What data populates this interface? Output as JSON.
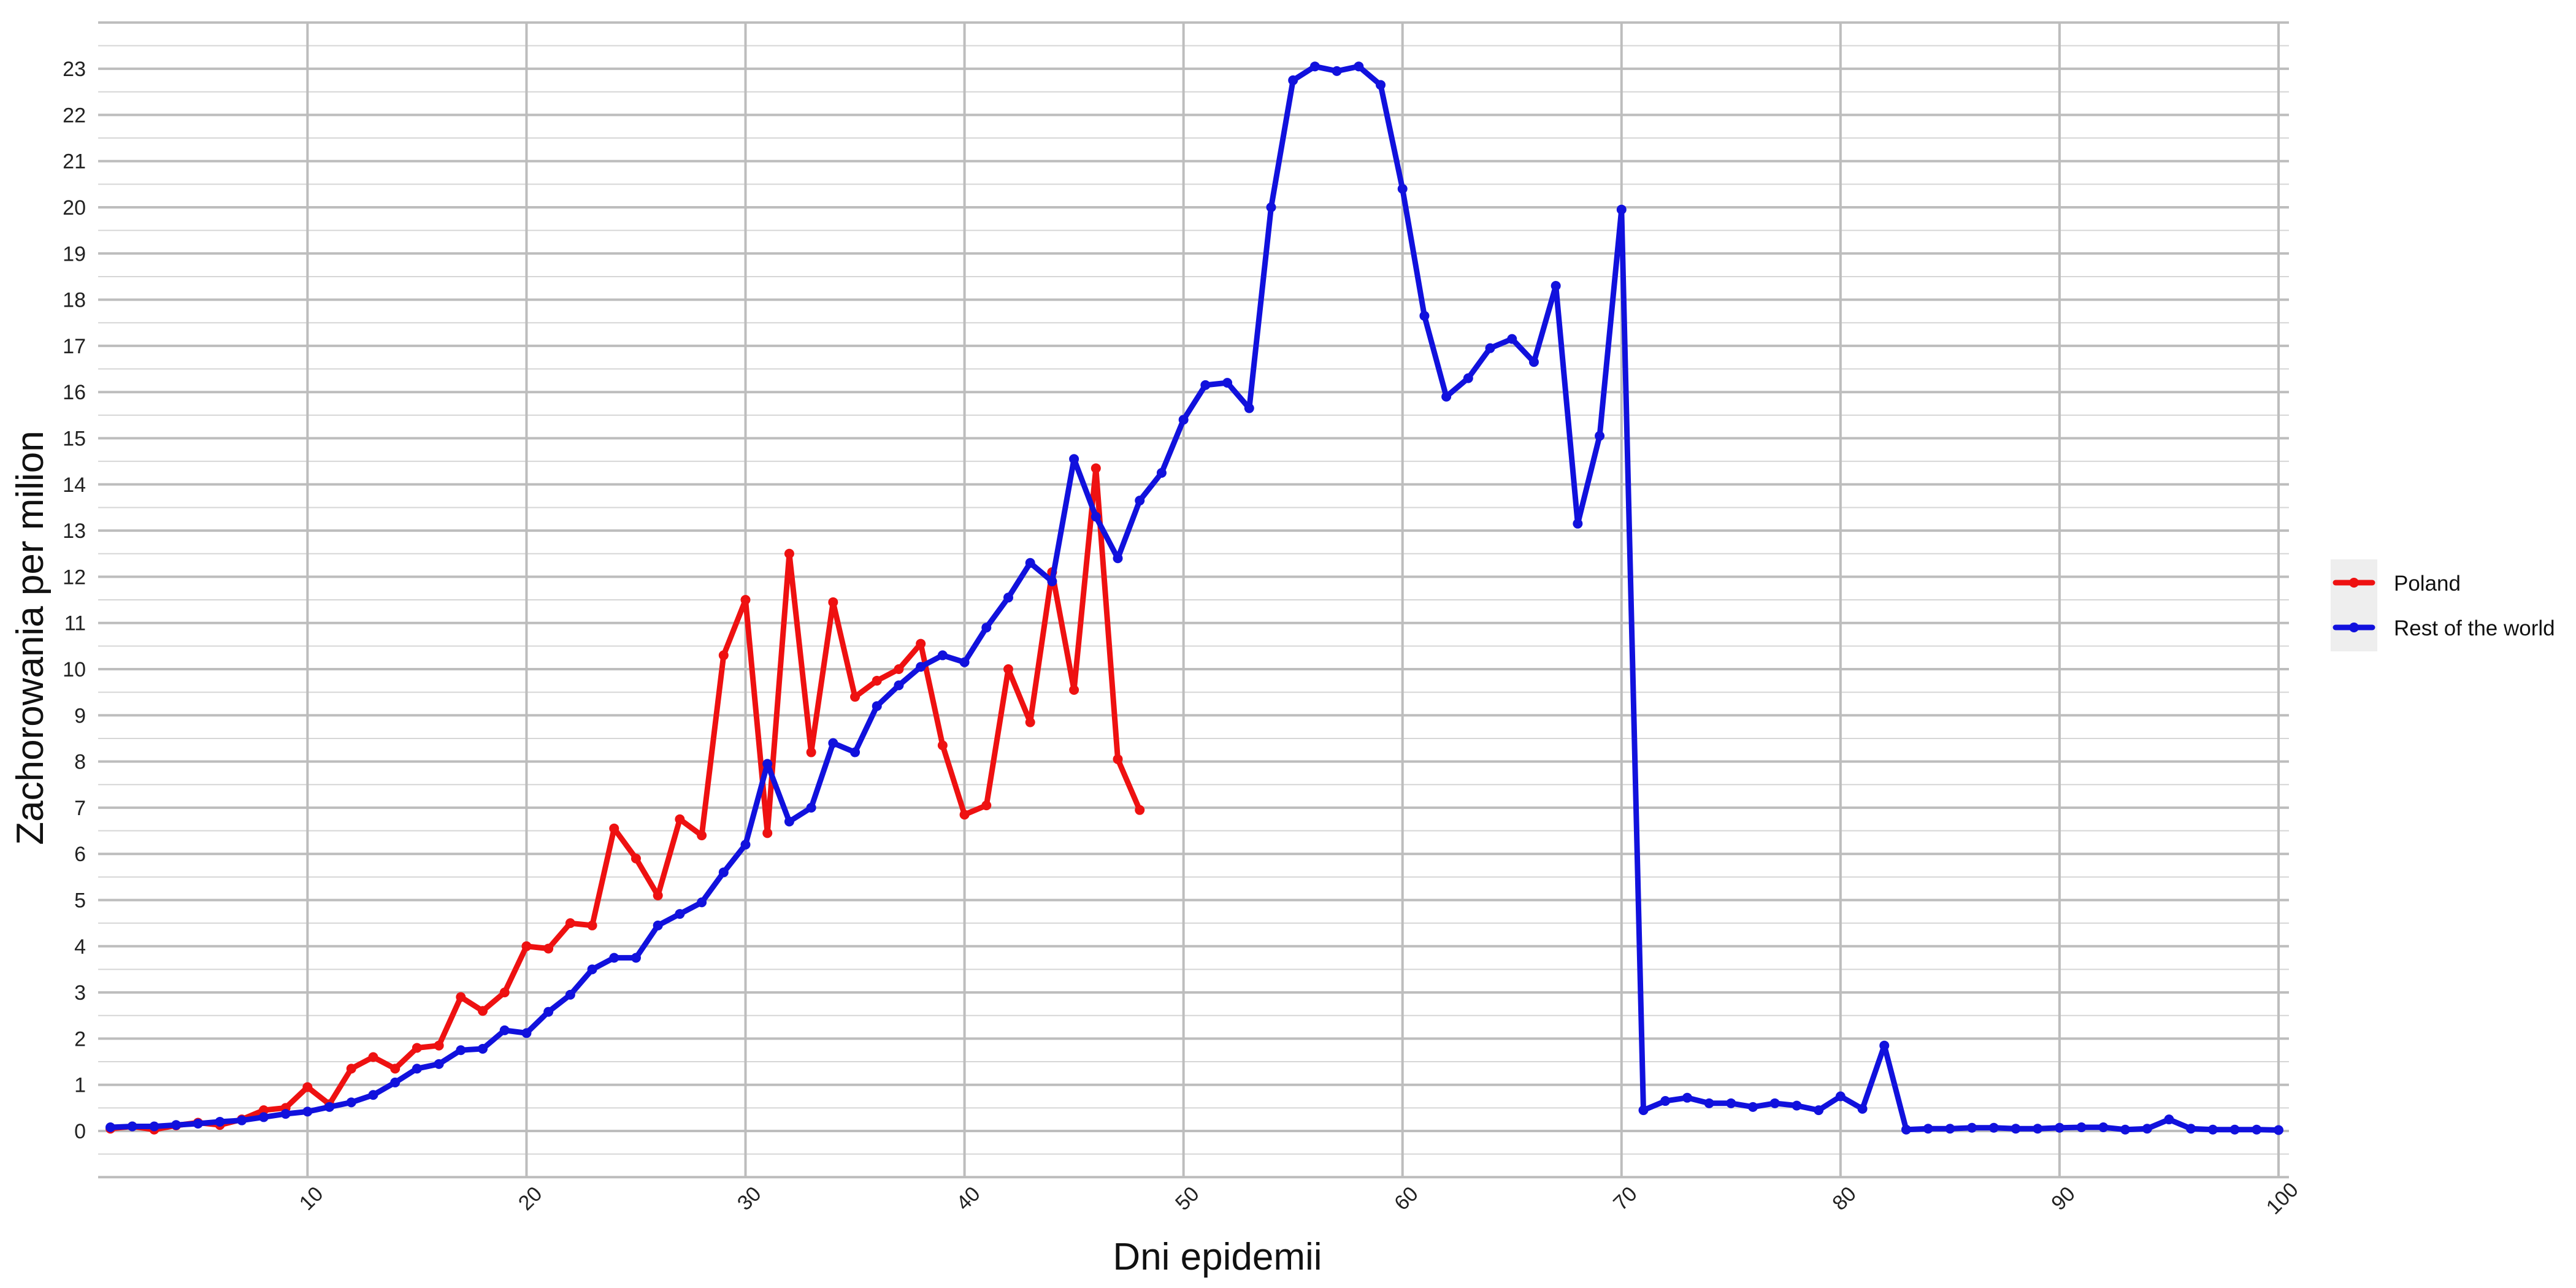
{
  "chart_data": {
    "type": "line",
    "title": "",
    "xlabel": "Dni epidemii",
    "ylabel": "Zachorowania per milion",
    "xlim": [
      0,
      100
    ],
    "ylim": [
      -1,
      24
    ],
    "x_ticks": [
      10,
      20,
      30,
      40,
      50,
      60,
      70,
      80,
      90,
      100
    ],
    "y_ticks": [
      0,
      1,
      2,
      3,
      4,
      5,
      6,
      7,
      8,
      9,
      10,
      11,
      12,
      13,
      14,
      15,
      16,
      17,
      18,
      19,
      20,
      21,
      22,
      23
    ],
    "grid": true,
    "legend_position": "right",
    "series": [
      {
        "name": "Poland",
        "color": "#ee1111",
        "x": [
          1,
          2,
          3,
          4,
          5,
          6,
          7,
          8,
          9,
          10,
          11,
          12,
          13,
          14,
          15,
          16,
          17,
          18,
          19,
          20,
          21,
          22,
          23,
          24,
          25,
          26,
          27,
          28,
          29,
          30,
          31,
          32,
          33,
          34,
          35,
          36,
          37,
          38,
          39,
          40,
          41,
          42,
          43,
          44,
          45,
          46,
          47,
          48
        ],
        "y": [
          0.05,
          0.1,
          0.03,
          0.12,
          0.18,
          0.13,
          0.25,
          0.45,
          0.5,
          0.95,
          0.58,
          1.35,
          1.6,
          1.35,
          1.8,
          1.85,
          2.9,
          2.6,
          3.0,
          4.0,
          3.95,
          4.5,
          4.45,
          6.55,
          5.9,
          5.1,
          6.75,
          6.4,
          10.3,
          11.5,
          6.45,
          12.5,
          8.2,
          11.45,
          9.4,
          9.75,
          10.0,
          10.55,
          8.35,
          6.85,
          7.05,
          10.0,
          8.85,
          12.1,
          9.55,
          14.35,
          8.05,
          6.95
        ]
      },
      {
        "name": "Rest of the world",
        "color": "#1111dd",
        "x": [
          1,
          2,
          3,
          4,
          5,
          6,
          7,
          8,
          9,
          10,
          11,
          12,
          13,
          14,
          15,
          16,
          17,
          18,
          19,
          20,
          21,
          22,
          23,
          24,
          25,
          26,
          27,
          28,
          29,
          30,
          31,
          32,
          33,
          34,
          35,
          36,
          37,
          38,
          39,
          40,
          41,
          42,
          43,
          44,
          45,
          46,
          47,
          48,
          49,
          50,
          51,
          52,
          53,
          54,
          55,
          56,
          57,
          58,
          59,
          60,
          61,
          62,
          63,
          64,
          65,
          66,
          67,
          68,
          69,
          70,
          71,
          72,
          73,
          74,
          75,
          76,
          77,
          78,
          79,
          80,
          81,
          82,
          83,
          84,
          85,
          86,
          87,
          88,
          89,
          90,
          91,
          92,
          93,
          94,
          95,
          96,
          97,
          98,
          99,
          100
        ],
        "y": [
          0.08,
          0.1,
          0.1,
          0.13,
          0.16,
          0.2,
          0.23,
          0.3,
          0.37,
          0.42,
          0.52,
          0.62,
          0.78,
          1.05,
          1.35,
          1.45,
          1.75,
          1.78,
          2.18,
          2.12,
          2.58,
          2.95,
          3.5,
          3.75,
          3.75,
          4.45,
          4.7,
          4.95,
          5.6,
          6.2,
          7.95,
          6.7,
          7.0,
          8.4,
          8.2,
          9.2,
          9.65,
          10.05,
          10.3,
          10.15,
          10.9,
          11.55,
          12.3,
          11.9,
          14.55,
          13.3,
          12.4,
          13.65,
          14.25,
          15.4,
          16.15,
          16.2,
          15.65,
          20.0,
          22.75,
          23.05,
          22.95,
          23.05,
          22.65,
          20.4,
          17.65,
          15.9,
          16.3,
          16.95,
          17.15,
          16.65,
          18.3,
          13.15,
          15.05,
          19.95,
          0.45,
          0.65,
          0.72,
          0.6,
          0.6,
          0.52,
          0.6,
          0.55,
          0.45,
          0.75,
          0.48,
          1.85,
          0.03,
          0.05,
          0.05,
          0.07,
          0.07,
          0.05,
          0.05,
          0.07,
          0.08,
          0.08,
          0.03,
          0.05,
          0.25,
          0.05,
          0.03,
          0.03,
          0.03,
          0.02
        ]
      }
    ]
  }
}
